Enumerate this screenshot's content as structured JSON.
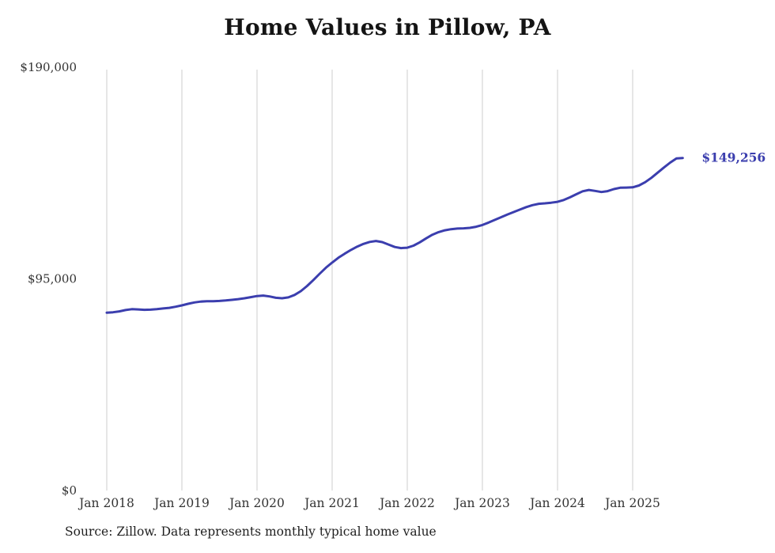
{
  "chart_data": {
    "type": "line",
    "title": "Home Values in Pillow, PA",
    "source": "Source: Zillow. Data represents monthly typical home value",
    "end_label": "$149,256",
    "end_value": 149256,
    "line_color": "#3B3EAE",
    "grid_color": "#CCCCCC",
    "tick_text_color": "#333333",
    "legend": "none",
    "grid": "vertical-only",
    "ylim": [
      0,
      190000
    ],
    "y_ticks": [
      {
        "value": 190000,
        "label": "$190,000"
      },
      {
        "value": 95000,
        "label": "$95,000"
      },
      {
        "value": 0,
        "label": "$0"
      }
    ],
    "x_unit": "month",
    "x_start": "Jan 2018",
    "x_end": "Sep 2025",
    "x_ticks": [
      {
        "month_index": 0,
        "label": "Jan 2018"
      },
      {
        "month_index": 12,
        "label": "Jan 2019"
      },
      {
        "month_index": 24,
        "label": "Jan 2020"
      },
      {
        "month_index": 36,
        "label": "Jan 2021"
      },
      {
        "month_index": 48,
        "label": "Jan 2022"
      },
      {
        "month_index": 60,
        "label": "Jan 2023"
      },
      {
        "month_index": 72,
        "label": "Jan 2024"
      },
      {
        "month_index": 84,
        "label": "Jan 2025"
      }
    ],
    "values": [
      79800,
      80000,
      80400,
      81000,
      81400,
      81300,
      81100,
      81200,
      81400,
      81700,
      82000,
      82500,
      83100,
      83800,
      84400,
      84800,
      85000,
      85000,
      85100,
      85300,
      85600,
      85900,
      86300,
      86800,
      87300,
      87500,
      87100,
      86500,
      86300,
      86700,
      87800,
      89500,
      91800,
      94500,
      97300,
      100000,
      102300,
      104500,
      106300,
      108000,
      109500,
      110700,
      111600,
      112000,
      111500,
      110400,
      109300,
      108800,
      109000,
      109900,
      111400,
      113200,
      114800,
      116000,
      116800,
      117300,
      117600,
      117700,
      117900,
      118400,
      119200,
      120300,
      121500,
      122700,
      123900,
      125000,
      126100,
      127200,
      128100,
      128700,
      128900,
      129200,
      129600,
      130400,
      131600,
      133000,
      134300,
      134900,
      134500,
      134000,
      134400,
      135300,
      135900,
      136000,
      136100,
      136900,
      138400,
      140400,
      142700,
      145000,
      147200,
      149100,
      149256
    ]
  }
}
